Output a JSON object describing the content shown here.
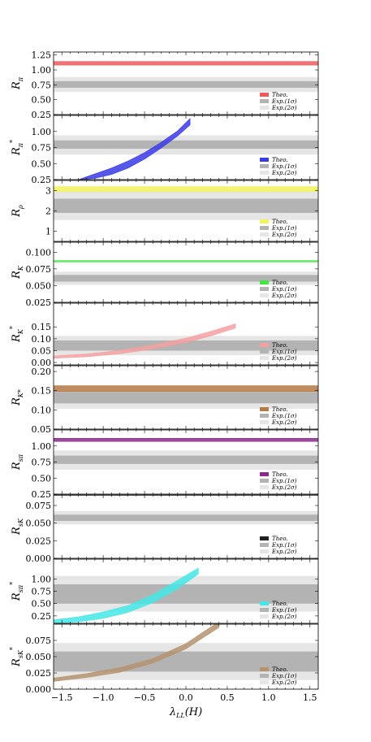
{
  "figure": {
    "xlabel": "λ_LL(H)",
    "x_ticks": [
      "−1.5",
      "−1.0",
      "−0.5",
      "0.0",
      "0.5",
      "1.0",
      "1.5"
    ],
    "legend_labels": {
      "theo": "Theo.",
      "exp1": "Exp.(1σ)",
      "exp2": "Exp.(2σ)"
    }
  },
  "colors": {
    "exp1": "#b3b3b3",
    "exp2": "#e6e6e6"
  },
  "chart_data": [
    {
      "type": "area",
      "ylabel_main": "R",
      "ylabel_sub": "π",
      "ylabel_sup": "",
      "color": "#f05a5a",
      "xlim": [
        -1.6,
        1.6
      ],
      "ylim": [
        0.25,
        1.3
      ],
      "y_ticks": [
        0.25,
        0.5,
        0.75,
        1.0,
        1.25
      ],
      "y_tick_labels": [
        "0.25",
        "0.50",
        "0.75",
        "1.00",
        "1.25"
      ],
      "exp1": [
        0.7,
        0.81
      ],
      "exp2": [
        0.63,
        0.88
      ],
      "theory": {
        "x": [
          -1.6,
          1.6
        ],
        "lower": [
          1.08,
          1.08
        ],
        "upper": [
          1.14,
          1.14
        ]
      }
    },
    {
      "type": "area",
      "ylabel_main": "R",
      "ylabel_sub": "π",
      "ylabel_sup": "*",
      "color": "#3a3ae6",
      "xlim": [
        -1.6,
        1.6
      ],
      "ylim": [
        0.25,
        1.25
      ],
      "y_ticks": [
        0.25,
        0.5,
        0.75,
        1.0
      ],
      "y_tick_labels": [
        "0.25",
        "0.50",
        "0.75",
        "1.00"
      ],
      "exp1": [
        0.73,
        0.86
      ],
      "exp2": [
        0.64,
        0.94
      ],
      "theory": {
        "x": [
          -1.3,
          -1.1,
          -0.9,
          -0.7,
          -0.5,
          -0.3,
          -0.1,
          0.05
        ],
        "lower": [
          0.25,
          0.27,
          0.33,
          0.43,
          0.57,
          0.74,
          0.93,
          1.1
        ],
        "upper": [
          0.25,
          0.34,
          0.43,
          0.54,
          0.67,
          0.83,
          1.01,
          1.2
        ]
      }
    },
    {
      "type": "area",
      "ylabel_main": "R",
      "ylabel_sub": "ρ",
      "ylabel_sup": "",
      "color": "#f2f25a",
      "xlim": [
        -1.6,
        1.6
      ],
      "ylim": [
        0.5,
        3.5
      ],
      "y_ticks": [
        1,
        2,
        3
      ],
      "y_tick_labels": [
        "1",
        "2",
        "3"
      ],
      "exp1": [
        1.9,
        2.6
      ],
      "exp2": [
        1.55,
        2.95
      ],
      "theory": {
        "x": [
          -1.6,
          1.6
        ],
        "lower": [
          2.95,
          2.95
        ],
        "upper": [
          3.2,
          3.2
        ]
      }
    },
    {
      "type": "area",
      "ylabel_main": "R",
      "ylabel_sub": "K",
      "ylabel_sup": "",
      "color": "#44e644",
      "xlim": [
        -1.6,
        1.6
      ],
      "ylim": [
        0.025,
        0.115
      ],
      "y_ticks": [
        0.025,
        0.05,
        0.075,
        0.1
      ],
      "y_tick_labels": [
        "0.025",
        "0.050",
        "0.075",
        "0.100"
      ],
      "exp1": [
        0.056,
        0.066
      ],
      "exp2": [
        0.051,
        0.071
      ],
      "theory": {
        "x": [
          -1.6,
          1.6
        ],
        "lower": [
          0.0855,
          0.0855
        ],
        "upper": [
          0.0875,
          0.0875
        ]
      }
    },
    {
      "type": "area",
      "ylabel_main": "R",
      "ylabel_sub": "K",
      "ylabel_sup": "*",
      "color": "#f5a0a0",
      "xlim": [
        -1.6,
        1.6
      ],
      "ylim": [
        -0.01,
        0.25
      ],
      "y_ticks": [
        0.0,
        0.05,
        0.1,
        0.15
      ],
      "y_tick_labels": [
        "0.00",
        "0.05",
        "0.10",
        "0.15"
      ],
      "exp1": [
        0.05,
        0.093
      ],
      "exp2": [
        0.031,
        0.112
      ],
      "theory": {
        "x": [
          -1.6,
          -1.2,
          -0.8,
          -0.4,
          0.0,
          0.3,
          0.6
        ],
        "lower": [
          0.018,
          0.024,
          0.037,
          0.057,
          0.084,
          0.112,
          0.145
        ],
        "upper": [
          0.028,
          0.036,
          0.051,
          0.073,
          0.103,
          0.131,
          0.163
        ]
      }
    },
    {
      "type": "area",
      "ylabel_main": "R",
      "ylabel_sub": "K*",
      "ylabel_sup": "",
      "color": "#b87a45",
      "xlim": [
        -1.6,
        1.6
      ],
      "ylim": [
        0.05,
        0.215
      ],
      "y_ticks": [
        0.05,
        0.1,
        0.15,
        0.2
      ],
      "y_tick_labels": [
        "0.05",
        "0.10",
        "0.15",
        "0.20"
      ],
      "exp1": [
        0.117,
        0.147
      ],
      "exp2": [
        0.103,
        0.162
      ],
      "theory": {
        "x": [
          -1.6,
          1.6
        ],
        "lower": [
          0.148,
          0.148
        ],
        "upper": [
          0.163,
          0.163
        ]
      }
    },
    {
      "type": "area",
      "ylabel_main": "R",
      "ylabel_sub": "sπ",
      "ylabel_sup": "",
      "color": "#8c2a8c",
      "xlim": [
        -1.6,
        1.6
      ],
      "ylim": [
        0.25,
        1.25
      ],
      "y_ticks": [
        0.25,
        0.5,
        0.75,
        1.0
      ],
      "y_tick_labels": [
        "0.25",
        "0.50",
        "0.75",
        "1.00"
      ],
      "exp1": [
        0.72,
        0.85
      ],
      "exp2": [
        0.63,
        0.93
      ],
      "theory": {
        "x": [
          -1.6,
          1.6
        ],
        "lower": [
          1.07,
          1.07
        ],
        "upper": [
          1.12,
          1.12
        ]
      }
    },
    {
      "type": "area",
      "ylabel_main": "R",
      "ylabel_sub": "sK",
      "ylabel_sup": "",
      "color": "#202020",
      "xlim": [
        -1.6,
        1.6
      ],
      "ylim": [
        0.0,
        0.09
      ],
      "y_ticks": [
        0.0,
        0.025,
        0.05,
        0.075
      ],
      "y_tick_labels": [
        "0.000",
        "0.025",
        "0.050",
        "0.075"
      ],
      "exp1": [
        0.053,
        0.062
      ],
      "exp2": [
        0.048,
        0.067
      ],
      "theory": {
        "x": [
          -1.6,
          1.6
        ],
        "lower": [
          0.0895,
          0.0895
        ],
        "upper": [
          0.0905,
          0.0905
        ]
      }
    },
    {
      "type": "area",
      "ylabel_main": "R",
      "ylabel_sub": "sπ",
      "ylabel_sup": "*",
      "color": "#44e6e6",
      "xlim": [
        -1.6,
        1.6
      ],
      "ylim": [
        0.1,
        1.4
      ],
      "y_ticks": [
        0.25,
        0.5,
        0.75,
        1.0
      ],
      "y_tick_labels": [
        "0.25",
        "0.50",
        "0.75",
        "1.00"
      ],
      "exp1": [
        0.5,
        0.89
      ],
      "exp2": [
        0.34,
        1.06
      ],
      "theory": {
        "x": [
          -1.6,
          -1.3,
          -1.0,
          -0.7,
          -0.4,
          -0.1,
          0.15
        ],
        "lower": [
          0.1,
          0.13,
          0.2,
          0.32,
          0.52,
          0.8,
          1.1
        ],
        "upper": [
          0.17,
          0.23,
          0.33,
          0.46,
          0.68,
          0.97,
          1.22
        ]
      }
    },
    {
      "type": "area",
      "ylabel_main": "R",
      "ylabel_sub": "sK",
      "ylabel_sup": "*",
      "color": "#b4936e",
      "xlim": [
        -1.6,
        1.6
      ],
      "ylim": [
        0.0,
        0.1
      ],
      "y_ticks": [
        0.0,
        0.025,
        0.05,
        0.075
      ],
      "y_tick_labels": [
        "0.000",
        "0.025",
        "0.050",
        "0.075"
      ],
      "exp1": [
        0.027,
        0.058
      ],
      "exp2": [
        0.014,
        0.071
      ],
      "theory": {
        "x": [
          -1.6,
          -1.2,
          -0.8,
          -0.4,
          0.0,
          0.4
        ],
        "lower": [
          0.012,
          0.018,
          0.026,
          0.04,
          0.062,
          0.095
        ],
        "upper": [
          0.017,
          0.024,
          0.033,
          0.047,
          0.07,
          0.104
        ]
      }
    }
  ]
}
